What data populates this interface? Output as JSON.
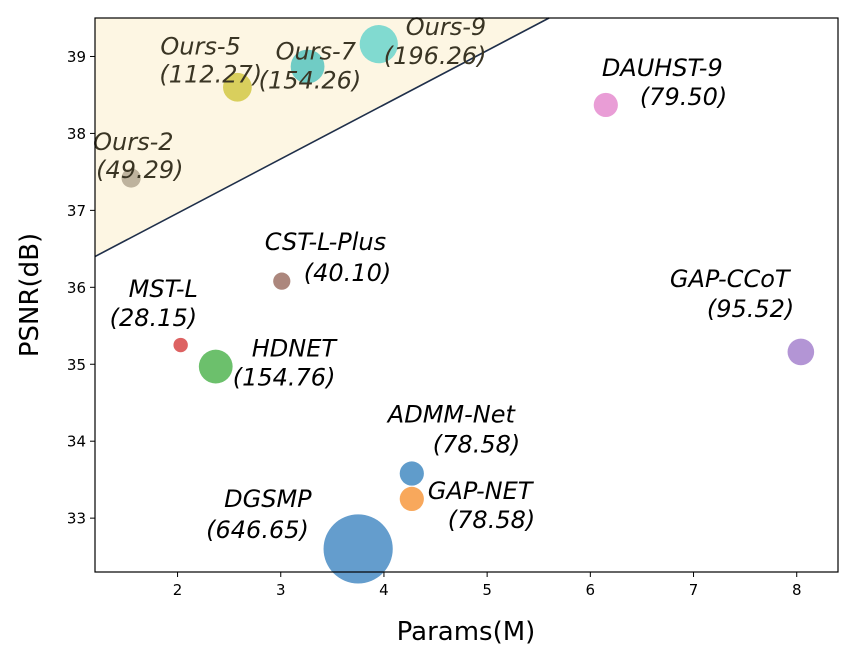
{
  "chart_data": {
    "type": "scatter",
    "xlabel": "Params(M)",
    "ylabel": "PSNR(dB)",
    "xlim": [
      1.2,
      8.4
    ],
    "ylim": [
      32.3,
      39.5
    ],
    "xticks": [
      "2",
      "3",
      "4",
      "5",
      "6",
      "7",
      "8"
    ],
    "yticks": [
      "33",
      "34",
      "35",
      "36",
      "37",
      "38",
      "39"
    ],
    "grid": false,
    "shaded_region": {
      "fill": "#fdf6e3",
      "edge": "#1f2f4a",
      "boundary_from": [
        1.2,
        36.4
      ],
      "boundary_to": [
        5.6,
        39.5
      ]
    },
    "points": [
      {
        "name": "Ours-2",
        "size_label": "(49.29)",
        "x": 1.55,
        "y": 37.42,
        "color": "#b5aa94",
        "gflops": 49.29,
        "ours": true
      },
      {
        "name": "Ours-5",
        "size_label": "(112.27)",
        "x": 2.58,
        "y": 38.6,
        "color": "#d4c94a",
        "gflops": 112.27,
        "ours": true
      },
      {
        "name": "Ours-7",
        "size_label": "(154.26)",
        "x": 3.26,
        "y": 38.87,
        "color": "#5cc6c0",
        "gflops": 154.26,
        "ours": true
      },
      {
        "name": "Ours-9",
        "size_label": "(196.26)",
        "x": 3.95,
        "y": 39.16,
        "color": "#6fd6cd",
        "gflops": 196.26,
        "ours": true
      },
      {
        "name": "DAUHST-9",
        "size_label": "(79.50)",
        "x": 6.15,
        "y": 38.37,
        "color": "#e68fd0",
        "gflops": 79.5,
        "ours": false
      },
      {
        "name": "CST-L-Plus",
        "size_label": "(40.10)",
        "x": 3.01,
        "y": 36.08,
        "color": "#a0766b",
        "gflops": 40.1,
        "ours": false
      },
      {
        "name": "MST-L",
        "size_label": "(28.15)",
        "x": 2.03,
        "y": 35.25,
        "color": "#d84c4c",
        "gflops": 28.15,
        "ours": false
      },
      {
        "name": "HDNET",
        "size_label": "(154.76)",
        "x": 2.37,
        "y": 34.97,
        "color": "#58b758",
        "gflops": 154.76,
        "ours": false
      },
      {
        "name": "GAP-CCoT",
        "size_label": "(95.52)",
        "x": 8.04,
        "y": 35.16,
        "color": "#a886cf",
        "gflops": 95.52,
        "ours": false
      },
      {
        "name": "ADMM-Net",
        "size_label": "(78.58)",
        "x": 4.27,
        "y": 33.58,
        "color": "#4a8ec4",
        "gflops": 78.58,
        "ours": false
      },
      {
        "name": "GAP-NET",
        "size_label": "(78.58)",
        "x": 4.27,
        "y": 33.25,
        "color": "#f79c45",
        "gflops": 78.58,
        "ours": false
      },
      {
        "name": "DGSMP",
        "size_label": "(646.65)",
        "x": 3.75,
        "y": 32.6,
        "color": "#4f90c6",
        "gflops": 646.65,
        "ours": false
      }
    ]
  }
}
